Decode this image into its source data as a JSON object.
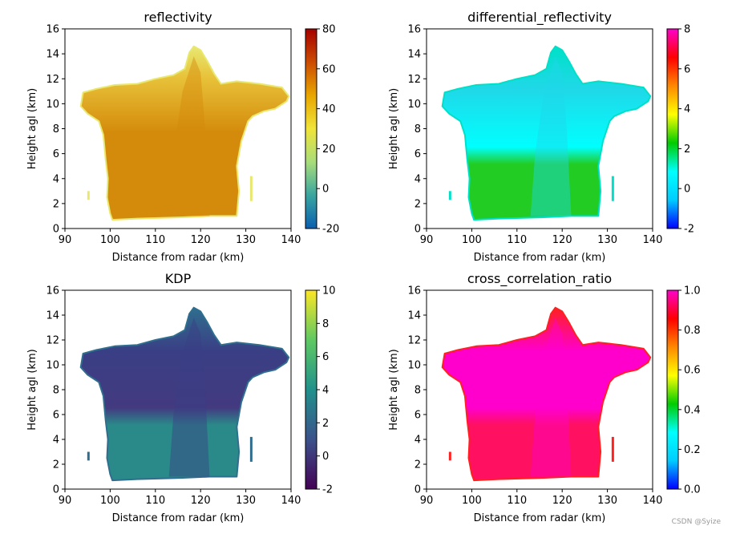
{
  "chart_data": [
    {
      "type": "heatmap",
      "title": "reflectivity",
      "xlabel": "Distance from radar (km)",
      "ylabel": "Height agl (km)",
      "xlim": [
        90,
        140
      ],
      "ylim": [
        0,
        16
      ],
      "xticks": [
        "90",
        "100",
        "110",
        "120",
        "130",
        "140"
      ],
      "yticks": [
        "0",
        "2",
        "4",
        "6",
        "8",
        "10",
        "12",
        "14",
        "16"
      ],
      "colorbar": {
        "range": [
          -20,
          80
        ],
        "ticks": [
          "-20",
          "0",
          "20",
          "40",
          "60",
          "80"
        ],
        "colors": [
          "#0a5fb0",
          "#3aa6a0",
          "#a8dd7a",
          "#f0e43a",
          "#e8a600",
          "#cc4c02",
          "#a50000"
        ]
      },
      "fill": {
        "core": "#d48a0a",
        "mid": "#e8c23a",
        "edge": "#e8e870"
      }
    },
    {
      "type": "heatmap",
      "title": "differential_reflectivity",
      "xlabel": "Distance from radar (km)",
      "ylabel": "Height agl (km)",
      "xlim": [
        90,
        140
      ],
      "ylim": [
        0,
        16
      ],
      "xticks": [
        "90",
        "100",
        "110",
        "120",
        "130",
        "140"
      ],
      "yticks": [
        "0",
        "2",
        "4",
        "6",
        "8",
        "10",
        "12",
        "14",
        "16"
      ],
      "colorbar": {
        "range": [
          -2,
          8
        ],
        "ticks": [
          "-2",
          "0",
          "2",
          "4",
          "6",
          "8"
        ],
        "colors": [
          "#0000ff",
          "#00ccff",
          "#00ffff",
          "#00cc00",
          "#ffff00",
          "#ff8800",
          "#ff0000",
          "#ff00cc"
        ]
      },
      "fill": {
        "core": "#20d8e8",
        "mid": "#00ffff",
        "edge": "#00e0c8",
        "low": "#22cc22"
      }
    },
    {
      "type": "heatmap",
      "title": "KDP",
      "xlabel": "Distance from radar (km)",
      "ylabel": "Height agl (km)",
      "xlim": [
        90,
        140
      ],
      "ylim": [
        0,
        16
      ],
      "xticks": [
        "90",
        "100",
        "110",
        "120",
        "130",
        "140"
      ],
      "yticks": [
        "0",
        "2",
        "4",
        "6",
        "8",
        "10",
        "12",
        "14",
        "16"
      ],
      "colorbar": {
        "range": [
          -2,
          10
        ],
        "ticks": [
          "-2",
          "0",
          "2",
          "4",
          "6",
          "8",
          "10"
        ],
        "colors": [
          "#440154",
          "#3b528b",
          "#21918c",
          "#5ec962",
          "#fde725"
        ]
      },
      "fill": {
        "core": "#3a3f85",
        "mid": "#433a80",
        "edge": "#2f6e8e",
        "low": "#2a8a8a"
      }
    },
    {
      "type": "heatmap",
      "title": "cross_correlation_ratio",
      "xlabel": "Distance from radar (km)",
      "ylabel": "Height agl (km)",
      "xlim": [
        90,
        140
      ],
      "ylim": [
        0,
        16
      ],
      "xticks": [
        "90",
        "100",
        "110",
        "120",
        "130",
        "140"
      ],
      "yticks": [
        "0",
        "2",
        "4",
        "6",
        "8",
        "10",
        "12",
        "14",
        "16"
      ],
      "colorbar": {
        "range": [
          0.0,
          1.0
        ],
        "ticks": [
          "0.0",
          "0.2",
          "0.4",
          "0.6",
          "0.8",
          "1.0"
        ],
        "colors": [
          "#0000ff",
          "#00ccff",
          "#00ffff",
          "#00cc00",
          "#ffff00",
          "#ff8800",
          "#ff0000",
          "#ff00cc"
        ]
      },
      "fill": {
        "core": "#ff00cc",
        "mid": "#ff00cc",
        "edge": "#ff2020",
        "low": "#ff1060"
      }
    }
  ],
  "storm_outline": {
    "units": "km",
    "points": [
      [
        100.5,
        0.7
      ],
      [
        106,
        0.8
      ],
      [
        116,
        0.9
      ],
      [
        122,
        1.0
      ],
      [
        128,
        1.0
      ],
      [
        128.5,
        3
      ],
      [
        128,
        5
      ],
      [
        129,
        7
      ],
      [
        130.5,
        8.6
      ],
      [
        131.5,
        9
      ],
      [
        134,
        9.4
      ],
      [
        136.5,
        9.6
      ],
      [
        139,
        10.2
      ],
      [
        139.5,
        10.6
      ],
      [
        138,
        11.3
      ],
      [
        133,
        11.6
      ],
      [
        128,
        11.8
      ],
      [
        124.5,
        11.6
      ],
      [
        123,
        12.4
      ],
      [
        121.5,
        13.4
      ],
      [
        120,
        14.3
      ],
      [
        118.5,
        14.6
      ],
      [
        117.5,
        14.1
      ],
      [
        116.5,
        12.8
      ],
      [
        114,
        12.3
      ],
      [
        110,
        12
      ],
      [
        106,
        11.6
      ],
      [
        101,
        11.5
      ],
      [
        97,
        11.2
      ],
      [
        94,
        10.9
      ],
      [
        93.5,
        9.8
      ],
      [
        95,
        9.2
      ],
      [
        97.5,
        8.6
      ],
      [
        98.5,
        7.5
      ],
      [
        99,
        5.5
      ],
      [
        99.5,
        4
      ],
      [
        99.3,
        2.5
      ],
      [
        100,
        1.2
      ]
    ]
  },
  "watermark": "CSDN @Syize"
}
